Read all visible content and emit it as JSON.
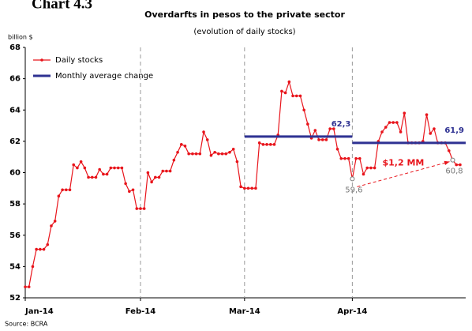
{
  "chart_data": {
    "type": "line",
    "header": "Chart 4.3",
    "title": "Overdarfts in pesos to the private sector",
    "subtitle": "(evolution of daily stocks)",
    "y_axis_label": "billion $",
    "source": "Source: BCRA",
    "x": [
      1,
      2,
      3,
      4,
      5,
      6,
      7,
      8,
      9,
      10,
      11,
      12,
      13,
      14,
      15,
      16,
      17,
      18,
      19,
      20,
      21,
      22,
      23,
      24,
      25,
      26,
      27,
      28,
      29,
      30,
      31,
      32,
      33,
      34,
      35,
      36,
      37,
      38,
      39,
      40,
      41,
      42,
      43,
      44,
      45,
      46,
      47,
      48,
      49,
      50,
      51,
      52,
      53,
      54,
      55,
      56,
      57,
      58,
      59,
      60,
      61,
      62,
      63,
      64,
      65,
      66,
      67,
      68,
      69,
      70,
      71,
      72,
      73,
      74,
      75,
      76,
      77,
      78,
      79,
      80,
      81,
      82,
      83,
      84,
      85,
      86,
      87,
      88,
      89,
      90,
      91,
      92,
      93,
      94,
      95,
      96,
      97,
      98,
      99,
      100,
      101,
      102,
      103,
      104,
      105,
      106,
      107,
      108,
      109,
      110,
      111,
      112,
      113,
      114,
      115,
      116,
      117,
      118
    ],
    "series": [
      {
        "name": "Daily stocks",
        "color": "#e8141b",
        "values": [
          52.7,
          52.7,
          54.0,
          55.1,
          55.1,
          55.1,
          55.4,
          56.6,
          56.9,
          58.5,
          58.9,
          58.9,
          58.9,
          60.5,
          60.3,
          60.7,
          60.3,
          59.7,
          59.7,
          59.7,
          60.2,
          59.9,
          59.9,
          60.3,
          60.3,
          60.3,
          60.3,
          59.3,
          58.8,
          58.9,
          57.7,
          57.7,
          57.7,
          60.0,
          59.4,
          59.7,
          59.7,
          60.1,
          60.1,
          60.1,
          60.8,
          61.3,
          61.8,
          61.7,
          61.2,
          61.2,
          61.2,
          61.2,
          62.6,
          62.1,
          61.1,
          61.3,
          61.2,
          61.2,
          61.2,
          61.3,
          61.5,
          60.7,
          59.1,
          59.0,
          59.0,
          59.0,
          59.0,
          61.9,
          61.8,
          61.8,
          61.8,
          61.8,
          62.4,
          65.2,
          65.1,
          65.8,
          64.9,
          64.9,
          64.9,
          64.0,
          63.1,
          62.2,
          62.7,
          62.1,
          62.1,
          62.1,
          62.8,
          62.8,
          61.5,
          60.9,
          60.9,
          60.9,
          59.6,
          60.9,
          60.9,
          59.9,
          60.3,
          60.3,
          60.3,
          62.0,
          62.6,
          62.9,
          63.2,
          63.2,
          63.2,
          62.6,
          63.8,
          61.9,
          61.9,
          61.9,
          61.9,
          62.0,
          63.7,
          62.5,
          62.8,
          61.9,
          61.9,
          61.9,
          61.4,
          60.8,
          60.5,
          60.5
        ]
      }
    ],
    "average_series": {
      "name": "Monthly average change",
      "color": "#2e3192",
      "segments": [
        {
          "x": [
            60,
            89
          ],
          "value": 62.3,
          "value_label": "62,3"
        },
        {
          "x": [
            89,
            119.5
          ],
          "value": 61.9,
          "value_label": "61,9"
        }
      ]
    },
    "annotations": [
      {
        "x": 89,
        "y": 59.6,
        "label": "59,6"
      },
      {
        "x": 116,
        "y": 60.8,
        "label": "60,8"
      }
    ],
    "difference_label": "$1,2 MM",
    "xlim": [
      1,
      119.5
    ],
    "xticks": [
      {
        "value": 1,
        "label": "Jan-14"
      },
      {
        "value": 32,
        "label": "Feb-14"
      },
      {
        "value": 60,
        "label": "Mar-14"
      },
      {
        "value": 89,
        "label": "Apr-14"
      }
    ],
    "ylim": [
      52,
      68
    ],
    "yticks": [
      52,
      54,
      56,
      58,
      60,
      62,
      64,
      66,
      68
    ],
    "x_grid": true,
    "legend": "upper left"
  }
}
